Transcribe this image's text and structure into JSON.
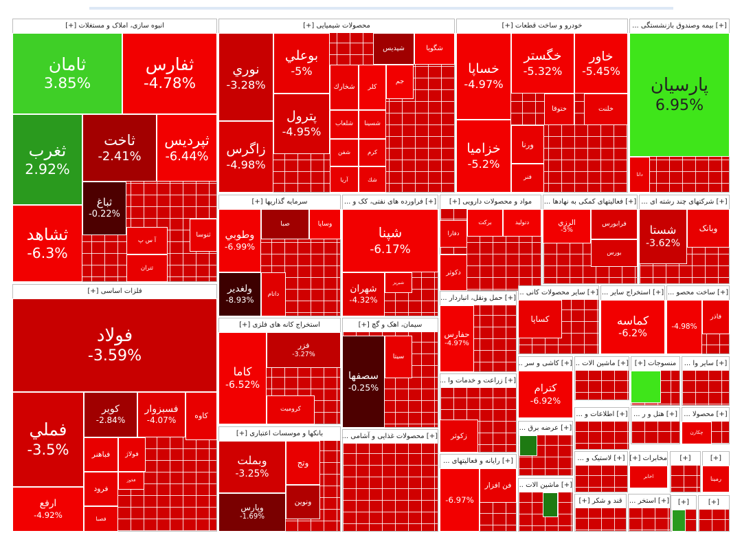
{
  "sectors": [
    {
      "title": "انبوه سازی، املاک و مستغلات [+]",
      "tiles": [
        {
          "name": "ثامان",
          "change": "3.85%",
          "color": "#3fcf27"
        },
        {
          "name": "ثفارس",
          "change": "-4.78%",
          "color": "#f20000"
        },
        {
          "name": "ثغرب",
          "change": "2.92%",
          "color": "#2a9a1e"
        },
        {
          "name": "ثاخت",
          "change": "-2.41%",
          "color": "#a30000"
        },
        {
          "name": "ثپرديس",
          "change": "-6.44%",
          "color": "#f20000"
        },
        {
          "name": "ثشاهد",
          "change": "-6.3%",
          "color": "#f20000"
        },
        {
          "name": "ثباغ",
          "change": "-0.22%",
          "color": "#4d0000"
        },
        {
          "name": "آ س پ",
          "color": "#e80000"
        },
        {
          "name": "ثتران",
          "color": "#e80000"
        },
        {
          "name": "ثنوسا",
          "color": "#e80000"
        }
      ]
    },
    {
      "title": "محصولات شیمیایی [+]",
      "tiles": [
        {
          "name": "نوري",
          "change": "-3.28%",
          "color": "#c80000"
        },
        {
          "name": "زاگرس",
          "change": "-4.98%",
          "color": "#d80000"
        },
        {
          "name": "بوعلي",
          "change": "-5%",
          "color": "#e80000"
        },
        {
          "name": "پترول",
          "change": "-4.95%",
          "color": "#d50000"
        },
        {
          "name": "شپديس",
          "color": "#a00000"
        },
        {
          "name": "شگويا",
          "color": "#f20000"
        },
        {
          "name": "شخارك",
          "color": "#e80000"
        },
        {
          "name": "کلر",
          "color": "#f20000"
        },
        {
          "name": "جم",
          "color": "#f20000"
        },
        {
          "name": "شلعاب",
          "color": "#e80000"
        },
        {
          "name": "شسينا",
          "color": "#e80000"
        },
        {
          "name": "شفن",
          "color": "#e80000"
        },
        {
          "name": "کرم",
          "color": "#e80000"
        },
        {
          "name": "آريا",
          "color": "#e80000"
        },
        {
          "name": "شك",
          "color": "#e80000"
        }
      ]
    },
    {
      "title": "خودرو و ساخت قطعات [+]",
      "tiles": [
        {
          "name": "خساپا",
          "change": "-4.97%",
          "color": "#f20000"
        },
        {
          "name": "خزاميا",
          "change": "-5.2%",
          "color": "#f20000"
        },
        {
          "name": "خگستر",
          "change": "-5.32%",
          "color": "#f20000"
        },
        {
          "name": "خاور",
          "change": "-5.45%",
          "color": "#f20000"
        },
        {
          "name": "ختوقا",
          "color": "#e80000"
        },
        {
          "name": "خلنت",
          "color": "#e80000"
        },
        {
          "name": "ورنا",
          "color": "#e80000"
        },
        {
          "name": "فنر",
          "color": "#e80000"
        }
      ]
    },
    {
      "title": "[+] بیمه وصندوق بازنشستگی ...",
      "tiles": [
        {
          "name": "پارسيان",
          "change": "6.95%",
          "color": "#3fe51a"
        },
        {
          "name": "دانا",
          "color": "#e80000"
        }
      ]
    },
    {
      "title": "سرمایه گذاریها [+]",
      "tiles": [
        {
          "name": "وطوبي",
          "change": "-6.99%",
          "color": "#f20000"
        },
        {
          "name": "ولغدير",
          "change": "-8.93%",
          "color": "#3d0000"
        },
        {
          "name": "صبا",
          "color": "#a00000"
        },
        {
          "name": "وساپا",
          "color": "#f20000"
        },
        {
          "name": "داتام",
          "color": "#e00000"
        }
      ]
    },
    {
      "title": "[+] فراورده های نفتی، کک و ...",
      "tiles": [
        {
          "name": "شپنا",
          "change": "-6.17%",
          "color": "#f20000"
        },
        {
          "name": "شهران",
          "change": "-4.32%",
          "color": "#e00000"
        },
        {
          "name": "شبريز",
          "color": "#e80000"
        }
      ]
    },
    {
      "title": "مواد و محصولات دارویی [+]",
      "tiles": [
        {
          "name": "دتوليد",
          "color": "#f20000"
        },
        {
          "name": "برکت",
          "color": "#f20000"
        },
        {
          "name": "دفارا",
          "color": "#e80000"
        },
        {
          "name": "دکوثر",
          "color": "#e80000"
        }
      ]
    },
    {
      "title": "[+] فعالیتهای کمکی به نهادها ...",
      "tiles": [
        {
          "name": "فرابورس",
          "color": "#d80000"
        },
        {
          "name": "بورس",
          "color": "#d80000"
        },
        {
          "name": "الرزي",
          "change": "-5%",
          "color": "#f20000"
        }
      ]
    },
    {
      "title": "[+] شرکتهای چند رشته ای ...",
      "tiles": [
        {
          "name": "وبانک",
          "color": "#e80000"
        },
        {
          "name": "شستا",
          "change": "-3.62%",
          "color": "#c80000"
        }
      ]
    },
    {
      "title": "فلزات اساسی [+]",
      "tiles": [
        {
          "name": "فولاد",
          "change": "-3.59%",
          "color": "#c80000"
        },
        {
          "name": "فملي",
          "change": "-3.5%",
          "color": "#d00000"
        },
        {
          "name": "ارفع",
          "change": "-4.92%",
          "color": "#f20000"
        },
        {
          "name": "کاوه",
          "color": "#e80000"
        },
        {
          "name": "کوير",
          "change": "-2.84%",
          "color": "#a00000"
        },
        {
          "name": "فسبزوار",
          "change": "-4.07%",
          "color": "#e00000"
        },
        {
          "name": "فولاژ",
          "color": "#e80000"
        },
        {
          "name": "فباهنر",
          "color": "#e80000"
        },
        {
          "name": "فخوز",
          "color": "#e80000"
        },
        {
          "name": "فرود",
          "color": "#e80000"
        },
        {
          "name": "فصبا",
          "color": "#e80000"
        }
      ]
    },
    {
      "title": "استخراج کانه های فلزی [+]",
      "tiles": [
        {
          "name": "کاما",
          "change": "-6.52%",
          "color": "#f20000"
        },
        {
          "name": "فزر",
          "change": "-3.27%",
          "color": "#c00000"
        },
        {
          "name": "کروميت",
          "color": "#e80000"
        }
      ]
    },
    {
      "title": "بانکها و موسسات اعتباری [+]",
      "tiles": [
        {
          "name": "وبملت",
          "change": "-3.25%",
          "color": "#d00000"
        },
        {
          "name": "وپارس",
          "change": "-1.69%",
          "color": "#7a0000"
        },
        {
          "name": "ونوين",
          "color": "#b00000"
        },
        {
          "name": "وتج",
          "color": "#e80000"
        }
      ]
    },
    {
      "title": "سیمان، اهک و گچ [+]",
      "tiles": [
        {
          "name": "سصفها",
          "change": "-0.25%",
          "color": "#4d0000"
        },
        {
          "name": "سيتا",
          "color": "#e80000"
        }
      ]
    },
    {
      "title": "[+] محصولات غذایی و آشامی ...",
      "tiles": []
    },
    {
      "title": "[+] حمل ونقل، انباردار ...",
      "tiles": [
        {
          "name": "حفارس",
          "change": "-4.97%",
          "color": "#f20000"
        }
      ]
    },
    {
      "title": "[+] زراعت و خدمات وا ...",
      "tiles": [
        {
          "name": "زکوثر",
          "color": "#e80000"
        }
      ]
    },
    {
      "title": "[+] رایانه و فعالیتهای ...",
      "tiles": [
        {
          "name": "فن افزار",
          "color": "#e80000"
        },
        {
          "change": "-6.97%",
          "color": "#f20000"
        }
      ]
    },
    {
      "title": "[+] سایر محصولات کانی ...",
      "tiles": [
        {
          "name": "کساپا",
          "color": "#e80000"
        }
      ]
    },
    {
      "title": "[+] استخراج سایر ...",
      "tiles": [
        {
          "name": "کماسه",
          "change": "-6.2%",
          "color": "#f20000"
        }
      ]
    },
    {
      "title": "[+] ساخت محصو ...",
      "tiles": [
        {
          "name": "فاذر",
          "color": "#e80000"
        },
        {
          "change": "-4.98%",
          "color": "#f20000"
        }
      ]
    },
    {
      "title": "[+] کاشی و سر ...",
      "tiles": [
        {
          "name": "کترام",
          "change": "-6.92%",
          "color": "#f20000"
        }
      ]
    },
    {
      "title": "[+] ماشین الات ...",
      "tiles": []
    },
    {
      "title": "منسوجات [+]",
      "tiles": [
        {
          "color": "#3fe51a"
        }
      ]
    },
    {
      "title": "[+] سایر وا ...",
      "tiles": []
    },
    {
      "title": "[+] عرضه برق ...",
      "tiles": [
        {
          "color": "#1e7a12"
        }
      ]
    },
    {
      "title": "[+] اطلاعات و ...",
      "tiles": []
    },
    {
      "title": "[+] هتل و ر ...",
      "tiles": []
    },
    {
      "title": "[+] محصولا ...",
      "tiles": [
        {
          "name": "چکارن",
          "color": "#e80000"
        }
      ]
    },
    {
      "title": "[+] ماشین الات ...",
      "tiles": [
        {
          "color": "#1e7a12"
        }
      ]
    },
    {
      "title": "[+] لاستیک و ...",
      "tiles": []
    },
    {
      "title": "مخابرات [+]",
      "tiles": [
        {
          "name": "اخابر",
          "color": "#e80000"
        }
      ]
    },
    {
      "title": "قند و شکر [+]",
      "tiles": []
    },
    {
      "title": "[+] استخر ...",
      "tiles": []
    },
    {
      "title": "[+]",
      "tiles": []
    },
    {
      "title": "[+]",
      "tiles": [
        {
          "name": "رمينا",
          "color": "#e80000"
        }
      ]
    },
    {
      "title": "[+]",
      "tiles": [
        {
          "color": "#2a9a1e"
        }
      ]
    },
    {
      "title": "[+]",
      "tiles": []
    }
  ]
}
